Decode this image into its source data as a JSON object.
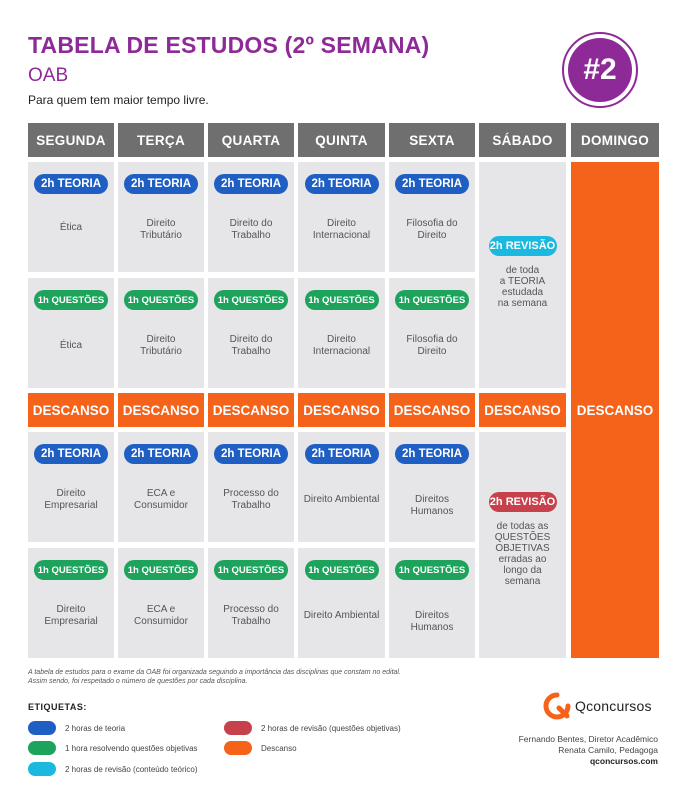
{
  "header": {
    "title": "TABELA DE ESTUDOS (2º SEMANA)",
    "subtitle": "OAB",
    "tagline": "Para quem tem maior tempo livre.",
    "badge": "#2"
  },
  "days": [
    "SEGUNDA",
    "TERÇA",
    "QUARTA",
    "QUINTA",
    "SEXTA",
    "SÁBADO",
    "DOMINGO"
  ],
  "pills": {
    "teoria": "2h TEORIA",
    "questoes": "1h QUESTÕES",
    "revisao": "2h REVISÃO"
  },
  "block1": {
    "teoria": [
      "Ética",
      "Direito\nTributário",
      "Direito do\nTrabalho",
      "Direito\nInternacional",
      "Filosofia do\nDireito"
    ],
    "questoes": [
      "Ética",
      "Direito\nTributário",
      "Direito do\nTrabalho",
      "Direito\nInternacional",
      "Filosofia do\nDireito"
    ],
    "saturday_text": "de toda\na TEORIA\nestudada\nna semana"
  },
  "descanso": "DESCANSO",
  "block2": {
    "teoria": [
      "Direito\nEmpresarial",
      "ECA e\nConsumidor",
      "Processo do\nTrabalho",
      "Direito Ambiental",
      "Direitos Humanos"
    ],
    "questoes": [
      "Direito\nEmpresarial",
      "ECA e\nConsumidor",
      "Processo do\nTrabalho",
      "Direito Ambiental",
      "Direitos Humanos"
    ],
    "saturday_text": "de todas as\nQUESTÕES\nOBJETIVAS\nerradas ao\nlongo da\nsemana"
  },
  "footnote": "A tabela de estudos para o exame da OAB foi organizada seguindo a importância das disciplinas que constam no edital.\nAssim sendo, foi respeitado o número de questões por cada disciplina.",
  "legend": {
    "title": "ETIQUETAS:",
    "items": [
      {
        "label": "2 horas de teoria",
        "color": "#1f5fc4"
      },
      {
        "label": "1 hora resolvendo questões objetivas",
        "color": "#1ea35c"
      },
      {
        "label": "2 horas de revisão (conteúdo teórico)",
        "color": "#1bb8df"
      },
      {
        "label": "2 horas de revisão (questões objetivas)",
        "color": "#c6414b"
      },
      {
        "label": "Descanso",
        "color": "#f56219"
      }
    ]
  },
  "brand": {
    "name": "Qconcursos",
    "credit1": "Fernando Bentes, Diretor Acadêmico",
    "credit2": "Renata Camilo, Pedagoga",
    "site": "qconcursos.com"
  },
  "colors": {
    "purple": "#8e2a97",
    "header_gray": "#6f6f6f",
    "cell_gray": "#e6e6e8",
    "orange": "#f56219"
  }
}
